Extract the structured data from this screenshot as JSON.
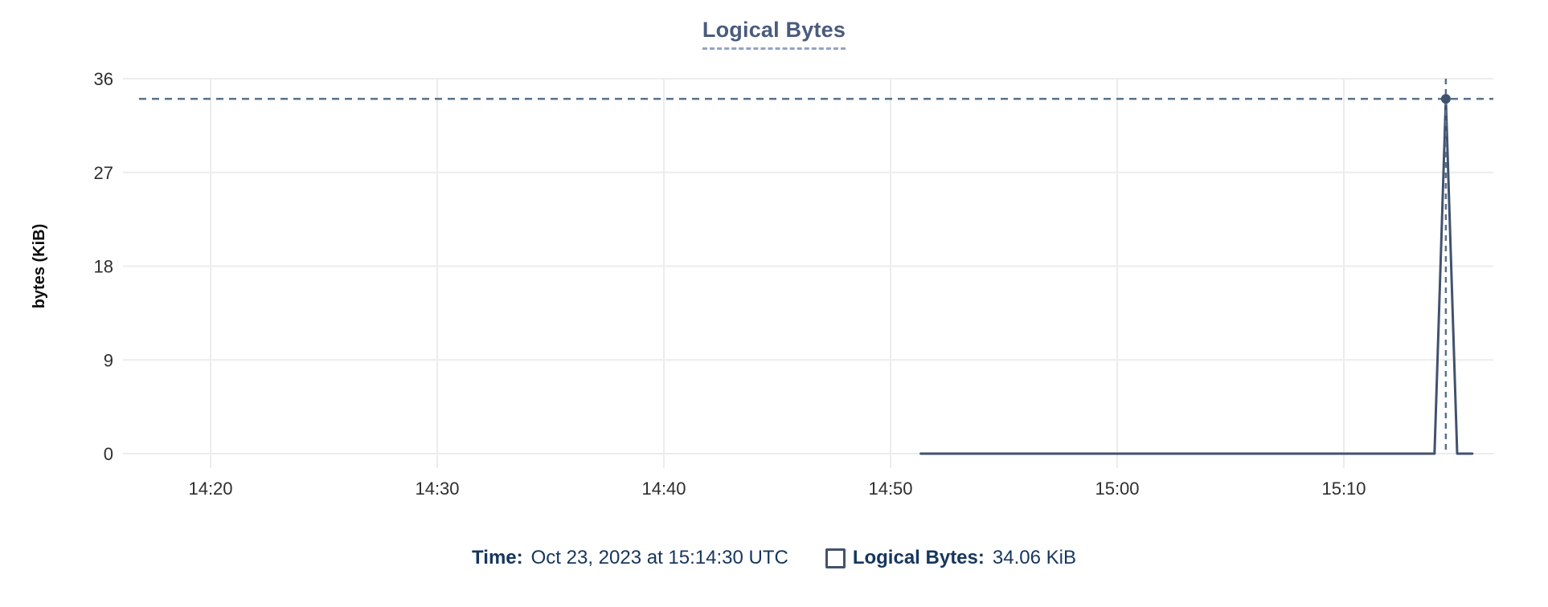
{
  "chart": {
    "title": "Logical Bytes",
    "ylabel": "bytes (KiB)"
  },
  "chart_data": {
    "type": "line",
    "title": "Logical Bytes",
    "xlabel": "",
    "ylabel": "bytes (KiB)",
    "ylim": [
      0,
      36
    ],
    "y_ticks": [
      0,
      9,
      18,
      27,
      36
    ],
    "x_ticks": [
      "14:20",
      "14:30",
      "14:40",
      "14:50",
      "15:00",
      "15:10"
    ],
    "grid": true,
    "legend_position": "bottom",
    "series": [
      {
        "name": "Logical Bytes",
        "points": [
          [
            "14:51:20",
            0
          ],
          [
            "15:14:00",
            0
          ],
          [
            "15:14:30",
            34.06
          ],
          [
            "15:15:00",
            0
          ],
          [
            "15:15:40",
            0
          ]
        ]
      }
    ],
    "crosshair": {
      "time": "15:14:30",
      "value": 34.06
    }
  },
  "tooltip": {
    "time_label": "Time:",
    "time_value": "Oct 23, 2023 at 15:14:30 UTC",
    "series_label": "Logical Bytes:",
    "series_value": "34.06 KiB"
  },
  "colors": {
    "title": "#4a5b7d",
    "title_underline": "#94a3c2",
    "line": "#41526d",
    "point": "#41526d",
    "crosshair": "#587189",
    "grid": "#ececec",
    "tick_text": "#2e2e2e",
    "axis_title_text": "#0d0d0d",
    "tooltip_text": "#16365d"
  }
}
